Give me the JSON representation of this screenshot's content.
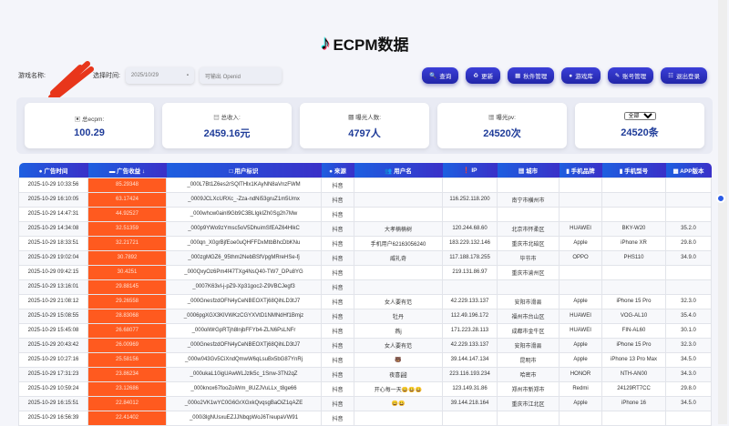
{
  "header": {
    "title": "ECPM数据",
    "logo_icon": "tiktok-logo-icon"
  },
  "filters": {
    "game_label": "游戏名称:",
    "time_label": "选择时间:",
    "date_value": "2025/10/29",
    "openid_placeholder": "可输出 Openid"
  },
  "buttons": [
    {
      "icon": "🔍",
      "label": "查询"
    },
    {
      "icon": "♻",
      "label": "更新"
    },
    {
      "icon": "▦",
      "label": "秋件管理"
    },
    {
      "icon": "●",
      "label": "游戏库"
    },
    {
      "icon": "✎",
      "label": "账号管理"
    },
    {
      "icon": "☷",
      "label": "退出登录"
    }
  ],
  "stats": [
    {
      "icon": "▣",
      "label": "总ecpm:",
      "value": "100.29"
    },
    {
      "icon": "▤",
      "label": "总收入:",
      "value": "2459.16元"
    },
    {
      "icon": "▩",
      "label": "曝光人数:",
      "value": "4797人"
    },
    {
      "icon": "▦",
      "label": "曝光pv:",
      "value": "24520次"
    },
    {
      "select": "全部",
      "value": "24520条"
    }
  ],
  "columns": [
    "● 广告时间",
    "▬ 广告收益 ↓",
    "□ 用户标识",
    "● 来源",
    "👥 用户名",
    "❗ IP",
    "▦ 城市",
    "▮ 手机品牌",
    "▮ 手机型号",
    "▦ APP版本"
  ],
  "rows": [
    [
      "2025-10-29 10:33:56",
      "85.29348",
      "_000L7Bt1Z6es2rSQlTHlx1KAyNN8aVnzFWM",
      "抖音",
      "",
      "",
      "",
      "",
      "",
      ""
    ],
    [
      "2025-10-29 16:10:05",
      "63.17424",
      "_0009JCLXcURXc_-Zza-ndNi53gruZ1m5Umx",
      "抖音",
      "",
      "116.252.118.200",
      "南宁市横州市",
      "",
      "",
      ""
    ],
    [
      "2025-10-29 14:47:31",
      "44.92527",
      "_000whcw0ainl9Gb9C3BLIgkIZh0Sg2h7Mw",
      "抖音",
      "",
      "",
      "",
      "",
      "",
      ""
    ],
    [
      "2025-10-29 14:34:08",
      "32.51359",
      "_000p9YWo9zYmsc5oV5DhuimSfEAZ64HlkC",
      "抖音",
      "大孝楠楠树",
      "120.244.68.60",
      "北京市怀柔区",
      "HUAWEI",
      "BKY-W20",
      "35.2.0"
    ],
    [
      "2025-10-29 18:33:51",
      "32.21721",
      "_000qn_X0grBjfEoe0uQHFFDxMtbBhcDbKNu",
      "抖音",
      "手机用户62163056240",
      "183.229.132.146",
      "重庆市北碚区",
      "Apple",
      "iPhone XR",
      "29.8.0"
    ],
    [
      "2025-10-29 19:02:04",
      "30.7892",
      "_000zgMGZ6_95thm2NebBSfVpgMRreHSe-fj",
      "抖音",
      "威礼奇",
      "117.188.178.255",
      "毕节市",
      "OPPO",
      "PHS110",
      "34.9.0"
    ],
    [
      "2025-10-29 09:42:15",
      "30.4251",
      "_000QxyOz6Pm4f47TXg4NsQ40-TW7_DPu8YG",
      "抖音",
      "",
      "219.131.86.97",
      "重庆市渝州区",
      "",
      "",
      ""
    ],
    [
      "2025-10-29 13:16:01",
      "29.88145",
      "_0007K63vl-j-pZ9-Xp31goc2-Z9VBCJegf3",
      "抖音",
      "",
      "",
      "",
      "",
      "",
      ""
    ],
    [
      "2025-10-29 21:08:12",
      "29.26558",
      "_000GnesfzdOFN4yCeNBEOXTj68QihLD3tJ7",
      "抖音",
      "女人要有范",
      "42.229.133.137",
      "安阳市滑县",
      "Apple",
      "iPhone 15 Pro",
      "32.3.0"
    ],
    [
      "2025-10-29 15:08:55",
      "28.83068",
      "_0006pgXGX3KlVWKzCGYXVtD1NMNdHf1Bmjz",
      "抖音",
      "牡丹",
      "112.49.196.172",
      "福州市台山区",
      "HUAWEI",
      "VOG-AL10",
      "35.4.0"
    ],
    [
      "2025-10-29 15:45:08",
      "26.68077",
      "_000olWrGpRTjh8lnjbFFYb4-ZLN6PsLNFr",
      "抖音",
      "燕j",
      "171.223.28.113",
      "成都市金牛区",
      "HUAWEI",
      "FIN-AL60",
      "30.1.0"
    ],
    [
      "2025-10-29 20:43:42",
      "26.00969",
      "_000GnesfzdOFN4yCeNBEOXTj68QihLD3tJ7",
      "抖音",
      "女人要有范",
      "42.229.133.137",
      "安阳市滑县",
      "Apple",
      "iPhone 15 Pro",
      "32.3.0"
    ],
    [
      "2025-10-29 10:27:16",
      "25.58156",
      "_000w043Gv5CiXndQmwW6qLsuBx5bG87YnRj",
      "抖音",
      "🐻",
      "39.144.147.134",
      "昆明市",
      "Apple",
      "iPhone 13 Pro Max",
      "34.5.0"
    ],
    [
      "2025-10-29 17:31:23",
      "23.86234",
      "_000ukaL10igUAwWLJzlk5c_1Snw-3TN2qZ",
      "抖音",
      "夜喜🏞",
      "223.116.193.234",
      "哈密市",
      "HONOR",
      "NTH-AN00",
      "34.3.0"
    ],
    [
      "2025-10-29 10:59:24",
      "23.12686",
      "_000knox67fooZoiWm_8UZJVuLLx_t8ge66",
      "抖音",
      "开心每一天😀😀😀",
      "123.149.31.86",
      "郑州市新郑市",
      "Redmi",
      "24129RT7CC",
      "29.8.0"
    ],
    [
      "2025-10-29 16:15:51",
      "22.84012",
      "_000o2VK1wYC0G6GrXGxkQvqsgBaOiZ1qAZE",
      "抖音",
      "😀😀",
      "39.144.218.164",
      "重庆市江北区",
      "Apple",
      "iPhone 16",
      "34.5.0"
    ],
    [
      "2025-10-29 16:56:39",
      "22.41402",
      "_000i3lgNUsxuEZJJNbqpWoJ6TreupaVW91",
      "抖音",
      "",
      "",
      "",
      "",
      "",
      ""
    ]
  ]
}
